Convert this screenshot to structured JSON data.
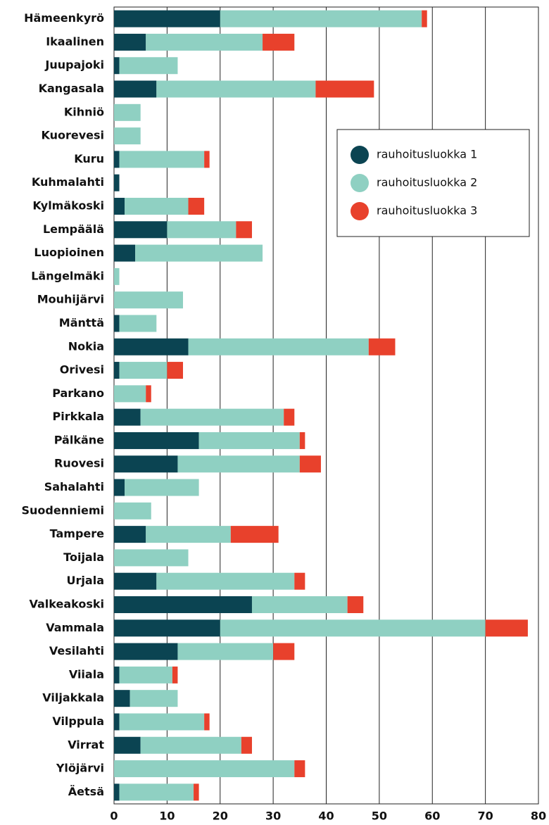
{
  "chart_data": {
    "type": "stacked_barh",
    "categories": [
      "Hämeenkyrö",
      "Ikaalinen",
      "Juupajoki",
      "Kangasala",
      "Kihniö",
      "Kuorevesi",
      "Kuru",
      "Kuhmalahti",
      "Kylmäkoski",
      "Lempäälä",
      "Luopioinen",
      "Längelmäki",
      "Mouhijärvi",
      "Mänttä",
      "Nokia",
      "Orivesi",
      "Parkano",
      "Pirkkala",
      "Pälkäne",
      "Ruovesi",
      "Sahalahti",
      "Suodenniemi",
      "Tampere",
      "Toijala",
      "Urjala",
      "Valkeakoski",
      "Vammala",
      "Vesilahti",
      "Viiala",
      "Viljakkala",
      "Vilppula",
      "Virrat",
      "Ylöjärvi",
      "Äetsä"
    ],
    "series": [
      {
        "name": "rauhoitusluokka 1",
        "color": "#0b4452",
        "values": [
          20,
          6,
          1,
          8,
          0,
          0,
          1,
          1,
          2,
          10,
          4,
          0,
          0,
          1,
          14,
          1,
          0,
          5,
          16,
          12,
          2,
          0,
          6,
          0,
          8,
          26,
          20,
          12,
          1,
          3,
          1,
          5,
          0,
          1
        ]
      },
      {
        "name": "rauhoitusluokka 2",
        "color": "#8fd0c2",
        "values": [
          38,
          22,
          11,
          30,
          5,
          5,
          16,
          0,
          12,
          13,
          24,
          1,
          13,
          7,
          34,
          9,
          6,
          27,
          19,
          23,
          14,
          7,
          16,
          14,
          26,
          18,
          50,
          18,
          10,
          9,
          16,
          19,
          34,
          14
        ]
      },
      {
        "name": "rauhoitusluokka 3",
        "color": "#e8412c",
        "values": [
          1,
          6,
          0,
          11,
          0,
          0,
          1,
          0,
          3,
          3,
          0,
          0,
          0,
          0,
          5,
          3,
          1,
          2,
          1,
          4,
          0,
          0,
          9,
          0,
          2,
          3,
          8,
          4,
          1,
          0,
          1,
          2,
          2,
          1
        ]
      }
    ],
    "xlim": [
      0,
      80
    ],
    "xticks": [
      0,
      10,
      20,
      30,
      40,
      50,
      60,
      70,
      80
    ],
    "grid": true,
    "legend": "upper right"
  }
}
